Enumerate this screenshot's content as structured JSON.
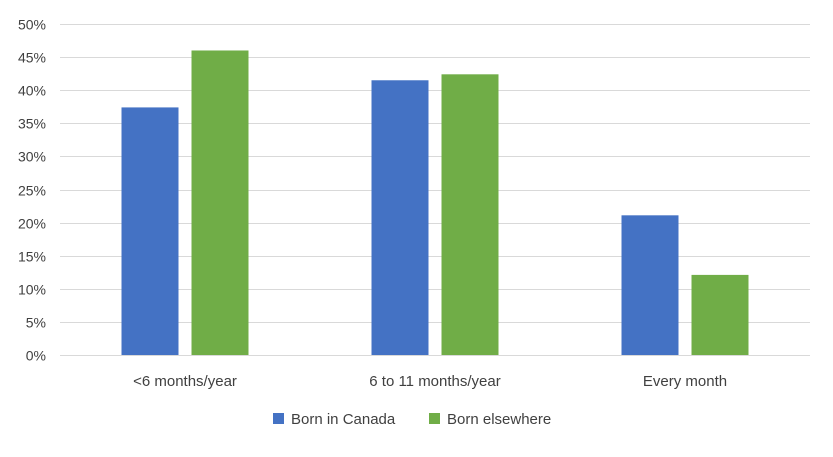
{
  "chart_data": {
    "type": "bar",
    "title": "",
    "xlabel": "",
    "ylabel": "",
    "categories": [
      "<6 months/year",
      "6 to 11 months/year",
      "Every month"
    ],
    "series": [
      {
        "name": "Born in Canada",
        "color": "#4472c4",
        "values": [
          37.4,
          41.5,
          21.1
        ]
      },
      {
        "name": "Born elsewhere",
        "color": "#70ad47",
        "values": [
          46.0,
          42.4,
          12.1
        ]
      }
    ],
    "ylim": [
      0,
      50
    ],
    "yticks": [
      0,
      5,
      10,
      15,
      20,
      25,
      30,
      35,
      40,
      45,
      50
    ],
    "ytick_labels": [
      "0%",
      "5%",
      "10%",
      "15%",
      "20%",
      "25%",
      "30%",
      "35%",
      "40%",
      "45%",
      "50%"
    ],
    "grid": true,
    "legend_position": "bottom"
  },
  "colors": {
    "gridline": "#d9d9d9",
    "text": "#404040"
  }
}
